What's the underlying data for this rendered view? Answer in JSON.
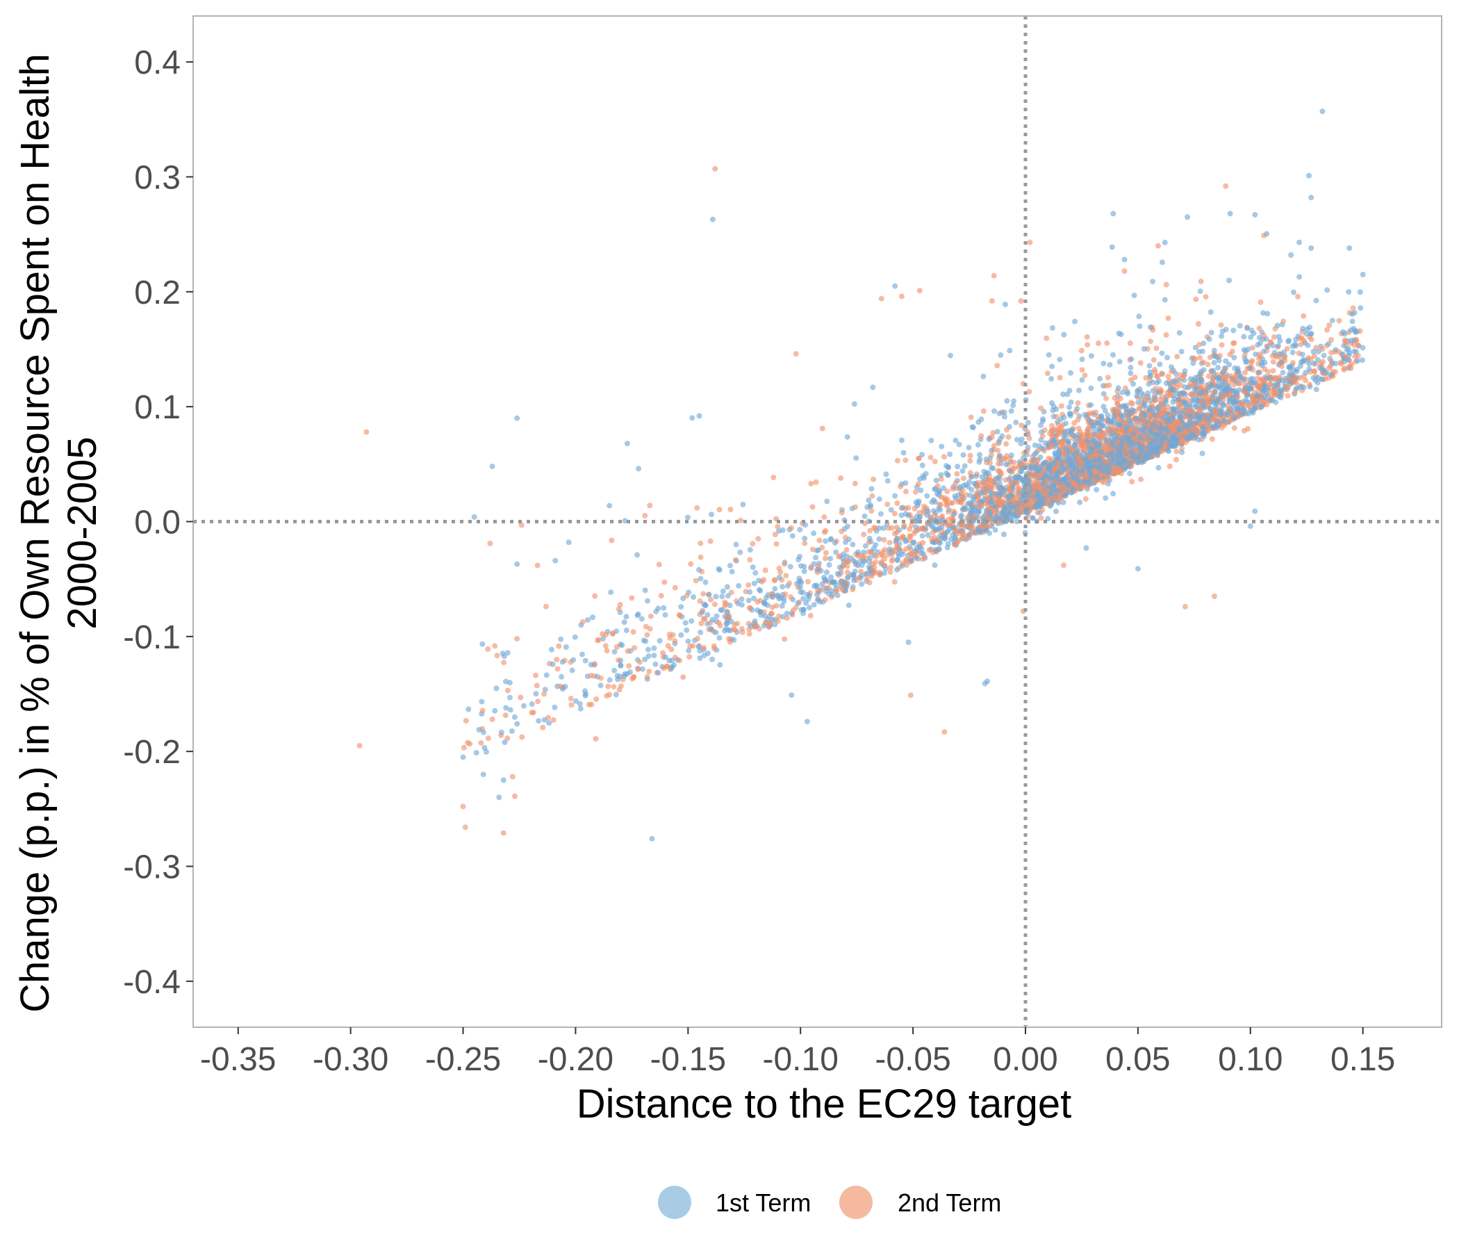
{
  "chart_data": {
    "type": "scatter",
    "xlabel": "Distance to the EC29 target",
    "ylabel_lines": [
      "Change (p.p.) in % of Own Resource Spent on Health",
      "2000-2005"
    ],
    "xlim": [
      -0.37,
      0.185
    ],
    "ylim": [
      -0.44,
      0.44
    ],
    "x_ticks": [
      -0.35,
      -0.3,
      -0.25,
      -0.2,
      -0.15,
      -0.1,
      -0.05,
      0.0,
      0.05,
      0.1,
      0.15
    ],
    "x_tick_labels": [
      "-0.35",
      "-0.30",
      "-0.25",
      "-0.20",
      "-0.15",
      "-0.10",
      "-0.05",
      "0.00",
      "0.05",
      "0.10",
      "0.15"
    ],
    "y_ticks": [
      0.4,
      0.3,
      0.2,
      0.1,
      0.0,
      -0.1,
      -0.2,
      -0.3,
      -0.4
    ],
    "y_tick_labels": [
      "0.4",
      "0.3",
      "0.2",
      "0.1",
      "0.0",
      "-0.1",
      "-0.2",
      "-0.3",
      "-0.4"
    ],
    "reference_lines": {
      "x": 0.0,
      "y": 0.0,
      "style": "dotted",
      "color": "#999999"
    },
    "grid": false,
    "legend_position": "bottom",
    "colors": {
      "1st Term": "#6fa8d6",
      "2nd Term": "#f0916a",
      "legend_1st": "#a9cce6",
      "legend_2nd": "#f5b9a0",
      "frame": "#b3b3b3"
    },
    "series": [
      {
        "name": "1st Term",
        "generated_points_approx": 2600,
        "points": [
          [
            0.132,
            0.357
          ],
          [
            0.126,
            0.301
          ],
          [
            0.127,
            0.282
          ],
          [
            -0.139,
            0.263
          ],
          [
            0.072,
            0.265
          ],
          [
            0.127,
            0.238
          ],
          [
            0.118,
            0.232
          ],
          [
            0.144,
            0.238
          ],
          [
            -0.226,
            0.09
          ],
          [
            -0.145,
            0.092
          ],
          [
            -0.237,
            0.048
          ],
          [
            -0.177,
            0.068
          ],
          [
            -0.172,
            0.046
          ],
          [
            -0.245,
            0.004
          ],
          [
            -0.226,
            -0.037
          ],
          [
            -0.209,
            -0.034
          ],
          [
            -0.166,
            -0.276
          ],
          [
            -0.203,
            -0.018
          ],
          [
            -0.168,
            -0.069
          ],
          [
            -0.232,
            -0.225
          ],
          [
            -0.25,
            -0.205
          ],
          [
            -0.241,
            -0.22
          ],
          [
            -0.234,
            -0.24
          ],
          [
            -0.017,
            -0.139
          ],
          [
            -0.018,
            -0.141
          ],
          [
            -0.097,
            -0.174
          ],
          [
            -0.052,
            -0.105
          ],
          [
            -0.104,
            -0.151
          ],
          [
            0.05,
            -0.041
          ],
          [
            0.027,
            -0.023
          ],
          [
            0.102,
            0.009
          ],
          [
            0.1,
            -0.004
          ],
          [
            -0.009,
            0.189
          ],
          [
            0.044,
            0.228
          ],
          [
            0.039,
            0.268
          ],
          [
            -0.058,
            0.205
          ],
          [
            0.091,
            0.268
          ],
          [
            0.102,
            0.267
          ],
          [
            0.15,
            0.215
          ],
          [
            0.062,
            0.193
          ]
        ]
      },
      {
        "name": "2nd Term",
        "generated_points_approx": 2200,
        "points": [
          [
            -0.138,
            0.307
          ],
          [
            0.089,
            0.292
          ],
          [
            -0.293,
            0.078
          ],
          [
            -0.296,
            -0.195
          ],
          [
            -0.25,
            -0.248
          ],
          [
            -0.249,
            -0.266
          ],
          [
            -0.232,
            -0.271
          ],
          [
            -0.227,
            -0.239
          ],
          [
            -0.228,
            -0.222
          ],
          [
            -0.239,
            -0.111
          ],
          [
            -0.237,
            -0.172
          ],
          [
            -0.226,
            -0.102
          ],
          [
            -0.224,
            -0.003
          ],
          [
            -0.238,
            -0.019
          ],
          [
            -0.036,
            -0.183
          ],
          [
            -0.051,
            -0.151
          ],
          [
            -0.001,
            -0.078
          ],
          [
            0.071,
            -0.074
          ],
          [
            0.002,
            0.243
          ],
          [
            -0.014,
            0.214
          ],
          [
            -0.102,
            0.146
          ],
          [
            -0.047,
            0.201
          ],
          [
            -0.064,
            0.194
          ],
          [
            0.059,
            0.24
          ],
          [
            0.106,
            0.249
          ],
          [
            0.044,
            0.218
          ],
          [
            0.078,
            0.209
          ],
          [
            0.147,
            0.157
          ],
          [
            -0.146,
            0.012
          ],
          [
            -0.167,
            0.014
          ],
          [
            -0.191,
            -0.189
          ],
          [
            -0.214,
            -0.15
          ],
          [
            0.084,
            -0.065
          ],
          [
            0.017,
            -0.038
          ],
          [
            -0.002,
            0.192
          ],
          [
            -0.055,
            0.196
          ]
        ]
      }
    ],
    "legend": [
      {
        "label": "1st Term"
      },
      {
        "label": "2nd Term"
      }
    ]
  }
}
